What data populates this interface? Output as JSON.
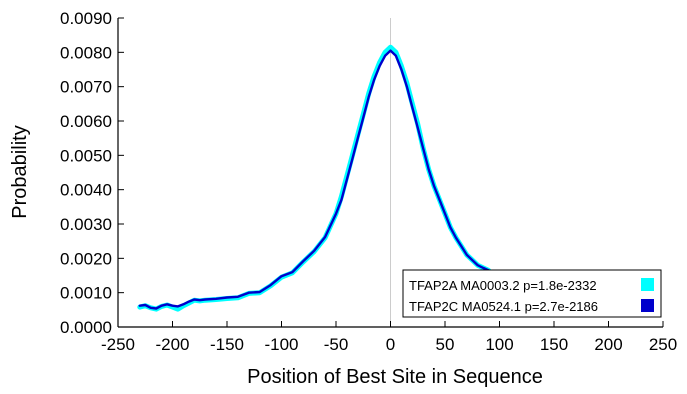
{
  "chart_data": {
    "type": "line",
    "xlabel": "Position of Best Site in Sequence",
    "ylabel": "Probability",
    "xlim": [
      -250,
      250
    ],
    "ylim": [
      0.0,
      0.009
    ],
    "xticks": [
      -250,
      -200,
      -150,
      -100,
      -50,
      0,
      50,
      100,
      150,
      200,
      250
    ],
    "xtick_labels": [
      "-250",
      "-200",
      "-150",
      "-100",
      "-50",
      "0",
      "50",
      "100",
      "150",
      "200",
      "250"
    ],
    "yticks": [
      0.0,
      0.001,
      0.002,
      0.003,
      0.004,
      0.005,
      0.006,
      0.007,
      0.008,
      0.009
    ],
    "ytick_labels": [
      "0.0000",
      "0.0010",
      "0.0020",
      "0.0030",
      "0.0040",
      "0.0050",
      "0.0060",
      "0.0070",
      "0.0080",
      "0.0090"
    ],
    "grid": false,
    "reference_line_x": 0,
    "legend_position": "bottom-right",
    "series": [
      {
        "name": "TFAP2A MA0003.2 p=1.8e-2332",
        "color": "#00FFFF",
        "x": [
          -230,
          -225,
          -220,
          -215,
          -210,
          -205,
          -200,
          -195,
          -190,
          -185,
          -180,
          -175,
          -170,
          -160,
          -150,
          -140,
          -130,
          -120,
          -110,
          -100,
          -90,
          -80,
          -70,
          -60,
          -50,
          -45,
          -40,
          -35,
          -30,
          -25,
          -20,
          -15,
          -10,
          -5,
          0,
          5,
          10,
          15,
          20,
          25,
          30,
          35,
          40,
          45,
          50,
          55,
          60,
          65,
          70,
          75,
          80,
          85,
          90
        ],
        "values": [
          0.00058,
          0.00062,
          0.00056,
          0.00052,
          0.0006,
          0.00064,
          0.00058,
          0.00052,
          0.00062,
          0.0007,
          0.00078,
          0.00076,
          0.00078,
          0.0008,
          0.00083,
          0.00085,
          0.00098,
          0.001,
          0.0012,
          0.00145,
          0.00158,
          0.0019,
          0.0022,
          0.0026,
          0.0033,
          0.0038,
          0.0044,
          0.005,
          0.0056,
          0.0062,
          0.0068,
          0.0073,
          0.0077,
          0.008,
          0.00815,
          0.008,
          0.0076,
          0.0071,
          0.0065,
          0.0059,
          0.0052,
          0.0046,
          0.0041,
          0.0037,
          0.0033,
          0.0029,
          0.0026,
          0.00235,
          0.0021,
          0.00195,
          0.0018,
          0.00172,
          0.00165
        ]
      },
      {
        "name": "TFAP2C MA0524.1 p=2.7e-2186",
        "color": "#0000CC",
        "x": [
          -230,
          -225,
          -220,
          -215,
          -210,
          -205,
          -200,
          -195,
          -190,
          -185,
          -180,
          -175,
          -170,
          -160,
          -150,
          -140,
          -130,
          -120,
          -110,
          -100,
          -90,
          -80,
          -70,
          -60,
          -50,
          -45,
          -40,
          -35,
          -30,
          -25,
          -20,
          -15,
          -10,
          -5,
          0,
          5,
          10,
          15,
          20,
          25,
          30,
          35,
          40,
          45,
          50,
          55,
          60,
          65,
          70,
          75,
          80,
          85,
          90
        ],
        "values": [
          0.00062,
          0.00064,
          0.00056,
          0.00054,
          0.00062,
          0.00066,
          0.00062,
          0.0006,
          0.00066,
          0.00074,
          0.0008,
          0.00078,
          0.0008,
          0.00082,
          0.00086,
          0.00088,
          0.001,
          0.00102,
          0.00122,
          0.00148,
          0.0016,
          0.00192,
          0.00222,
          0.00262,
          0.0033,
          0.0037,
          0.0043,
          0.0049,
          0.0055,
          0.0061,
          0.0067,
          0.0072,
          0.0076,
          0.0079,
          0.00805,
          0.0079,
          0.0075,
          0.007,
          0.0064,
          0.0058,
          0.0052,
          0.0046,
          0.0041,
          0.0037,
          0.0033,
          0.0029,
          0.0026,
          0.00235,
          0.0021,
          0.00195,
          0.0018,
          0.00172,
          0.00165
        ]
      }
    ]
  }
}
